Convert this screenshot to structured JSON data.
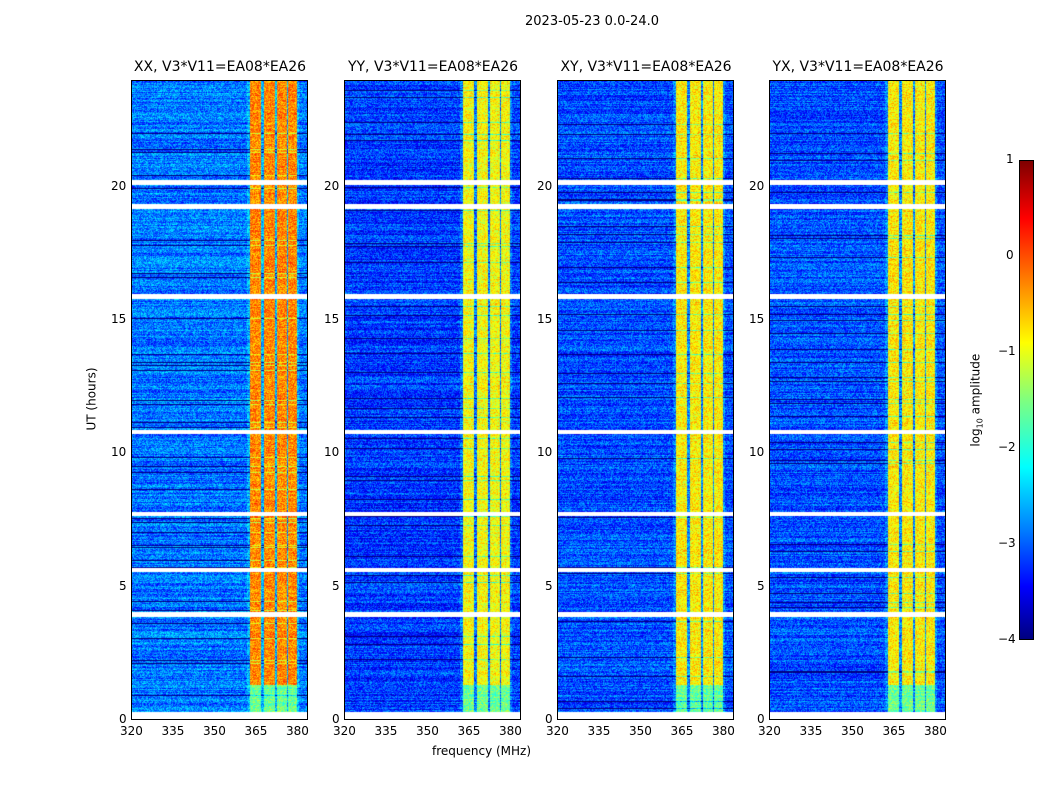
{
  "chart_data": {
    "type": "heatmap",
    "suptitle": "2023-05-23 0.0-24.0",
    "xlabel": "frequency (MHz)",
    "ylabel": "UT (hours)",
    "xlim": [
      320,
      384
    ],
    "ylim": [
      0,
      24
    ],
    "xticks": [
      "320",
      "335",
      "350",
      "365",
      "380"
    ],
    "xtick_values": [
      320,
      335,
      350,
      365,
      380
    ],
    "yticks": [
      "0",
      "5",
      "10",
      "15",
      "20"
    ],
    "ytick_values": [
      0,
      5,
      10,
      15,
      20
    ],
    "panels": [
      {
        "title": "XX, V3*V11=EA08*EA26",
        "background_log_amp": -2.8,
        "rfi_log_amp": -0.3
      },
      {
        "title": "YY, V3*V11=EA08*EA26",
        "background_log_amp": -3.1,
        "rfi_log_amp": -0.9
      },
      {
        "title": "XY, V3*V11=EA08*EA26",
        "background_log_amp": -3.0,
        "rfi_log_amp": -0.8
      },
      {
        "title": "YX, V3*V11=EA08*EA26",
        "background_log_amp": -3.0,
        "rfi_log_amp": -0.8
      }
    ],
    "rfi_bands_mhz": [
      [
        363,
        367
      ],
      [
        368,
        372
      ],
      [
        373,
        376.5
      ],
      [
        377,
        380
      ]
    ],
    "flagged_hours": [
      [
        0,
        0.3
      ],
      [
        3.85,
        4.05
      ],
      [
        5.55,
        5.7
      ],
      [
        7.65,
        7.8
      ],
      [
        10.75,
        10.9
      ],
      [
        15.8,
        16.0
      ],
      [
        19.2,
        19.4
      ],
      [
        20.1,
        20.3
      ]
    ],
    "colorbar": {
      "label": "log10 amplitude",
      "label_main": "log",
      "label_sub": "10",
      "label_rest": " amplitude",
      "range": [
        -4,
        1
      ],
      "ticks": [
        "1",
        "0",
        "−1",
        "−2",
        "−3",
        "−4"
      ],
      "tick_values": [
        1,
        0,
        -1,
        -2,
        -3,
        -4
      ]
    }
  }
}
